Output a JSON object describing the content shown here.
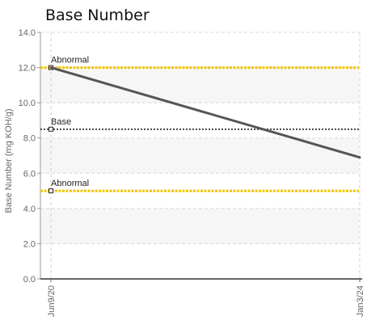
{
  "chart_data": {
    "type": "line",
    "title": "Base Number",
    "xlabel": "",
    "ylabel": "Base Number (mg KOH/g)",
    "categories": [
      "Jun9/20",
      "Jan3/24"
    ],
    "ylim": [
      0,
      14
    ],
    "yticks": [
      "0.0",
      "2.0",
      "4.0",
      "6.0",
      "8.0",
      "10.0",
      "12.0",
      "14.0"
    ],
    "grid": true,
    "series": [
      {
        "values": [
          12.0,
          6.9
        ],
        "color": "#555555"
      }
    ],
    "reference_lines": [
      {
        "name": "Abnormal",
        "value": 12.0,
        "color": "#f2c300"
      },
      {
        "name": "Base",
        "value": 8.5,
        "color": "#444444"
      },
      {
        "name": "Abnormal",
        "value": 5.0,
        "color": "#f2c300"
      }
    ],
    "band_color": "#f6f6f6"
  }
}
